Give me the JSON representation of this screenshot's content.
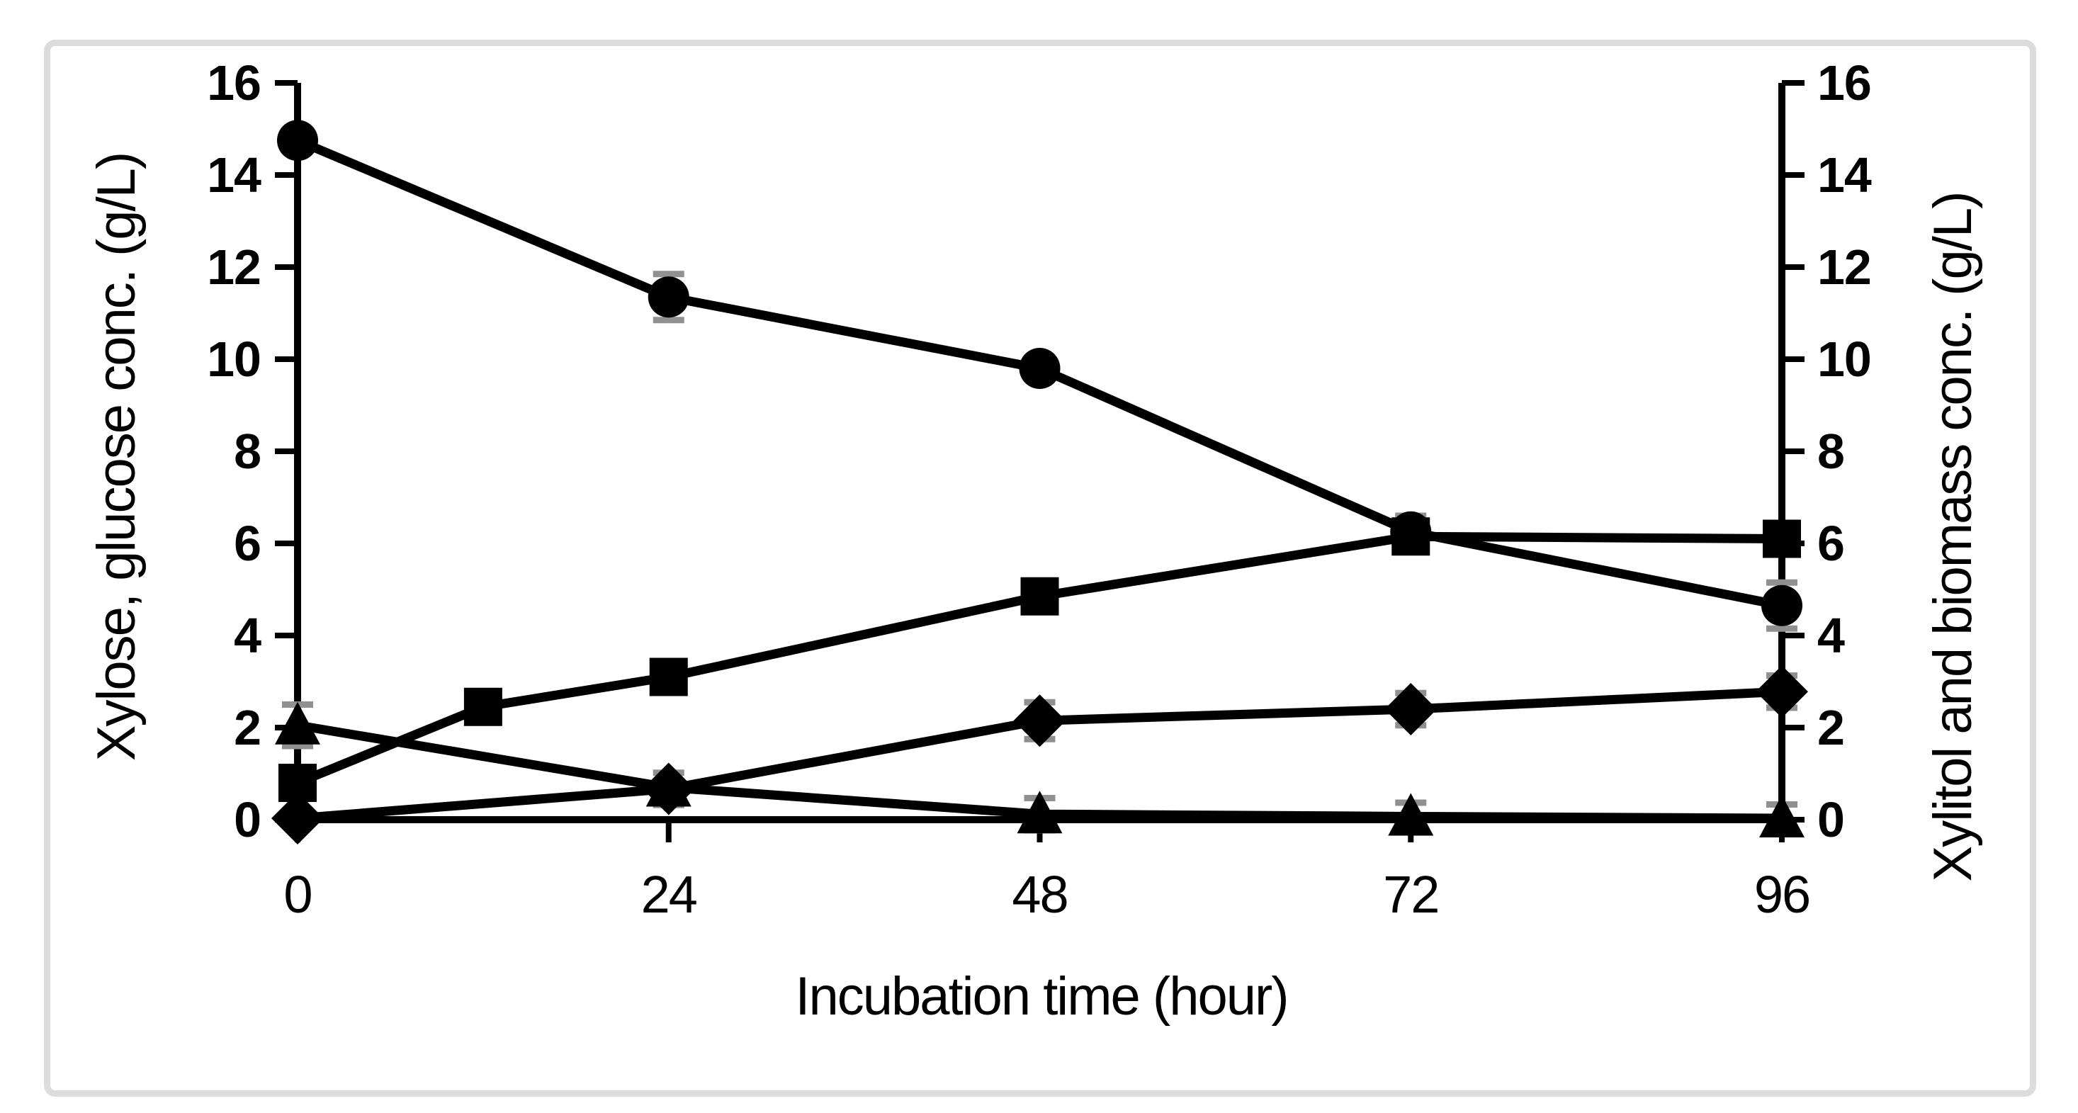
{
  "figure": {
    "background": "#ffffff",
    "border_color": "#dcdcdc",
    "series_color": "#000000",
    "error_bar_color": "#909090"
  },
  "chart_data": {
    "type": "line",
    "title": "",
    "grid": false,
    "legend": false,
    "x_axis": {
      "title": "Incubation time (hour)",
      "ticks": [
        0,
        24,
        48,
        72,
        96
      ],
      "range": [
        0,
        96
      ]
    },
    "y_left": {
      "title": "Xylose, glucose conc. (g/L)",
      "ticks": [
        0,
        2,
        4,
        6,
        8,
        10,
        12,
        14,
        16
      ],
      "range": [
        0,
        16
      ]
    },
    "y_right": {
      "title": "Xylitol and biomass conc. (g/L)",
      "ticks": [
        0,
        2,
        4,
        6,
        8,
        10,
        12,
        14,
        16
      ],
      "range": [
        0,
        16
      ]
    },
    "series": [
      {
        "id": "xylose",
        "marker": "circle",
        "axis": "left",
        "points": [
          [
            0,
            14.75
          ],
          [
            24,
            11.35
          ],
          [
            48,
            9.8
          ],
          [
            72,
            6.25
          ],
          [
            96,
            4.65
          ]
        ],
        "errors": [
          0,
          0.5,
          0,
          0.35,
          0.5
        ]
      },
      {
        "id": "xylitol",
        "marker": "square",
        "axis": "right",
        "points": [
          [
            0,
            0.8
          ],
          [
            12,
            2.45
          ],
          [
            24,
            3.1
          ],
          [
            48,
            4.85
          ],
          [
            72,
            6.15
          ],
          [
            96,
            6.1
          ]
        ],
        "errors": [
          0,
          0,
          0,
          0,
          0.3,
          0
        ]
      },
      {
        "id": "glucose",
        "marker": "triangle",
        "axis": "left",
        "points": [
          [
            0,
            2.05
          ],
          [
            24,
            0.7
          ],
          [
            48,
            0.12
          ],
          [
            72,
            0.07
          ],
          [
            96,
            0.03
          ]
        ],
        "errors": [
          0.45,
          0,
          0.35,
          0.3,
          0.3
        ]
      },
      {
        "id": "biomass",
        "marker": "diamond",
        "axis": "right",
        "points": [
          [
            0,
            0.03
          ],
          [
            24,
            0.67
          ],
          [
            48,
            2.15
          ],
          [
            72,
            2.4
          ],
          [
            96,
            2.78
          ]
        ],
        "errors": [
          0,
          0.35,
          0.4,
          0.35,
          0.35
        ]
      }
    ]
  }
}
